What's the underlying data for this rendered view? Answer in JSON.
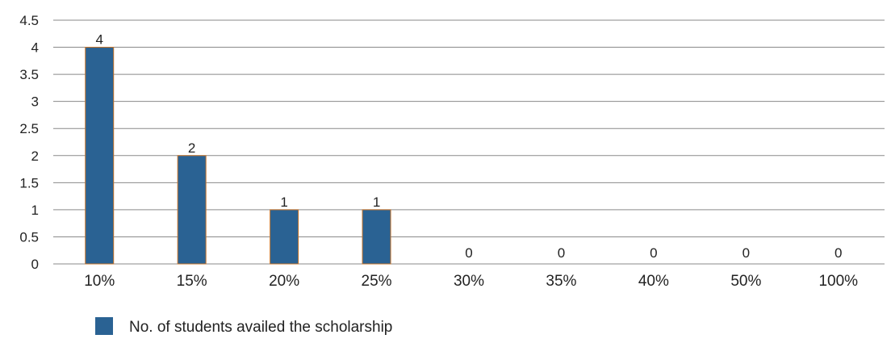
{
  "chart_data": {
    "type": "bar",
    "categories": [
      "10%",
      "15%",
      "20%",
      "25%",
      "30%",
      "35%",
      "40%",
      "50%",
      "100%"
    ],
    "series": [
      {
        "name": "No. of students availed the scholarship",
        "values": [
          4,
          2,
          1,
          1,
          0,
          0,
          0,
          0,
          0
        ],
        "color": "#2a6293"
      }
    ],
    "data_labels": [
      "4",
      "2",
      "1",
      "1",
      "0",
      "0",
      "0",
      "0",
      "0"
    ],
    "y_ticks": [
      "0",
      "0.5",
      "1",
      "1.5",
      "2",
      "2.5",
      "3",
      "3.5",
      "4",
      "4.5"
    ],
    "ylim": [
      0,
      4.5
    ],
    "grid": true,
    "legend_position": "bottom-left",
    "title": "",
    "xlabel": "",
    "ylabel": "",
    "colors": {
      "bar": "#2a6293",
      "bar_edge": "#c8742a",
      "grid": "#8a8a8a",
      "text": "#222222"
    }
  }
}
